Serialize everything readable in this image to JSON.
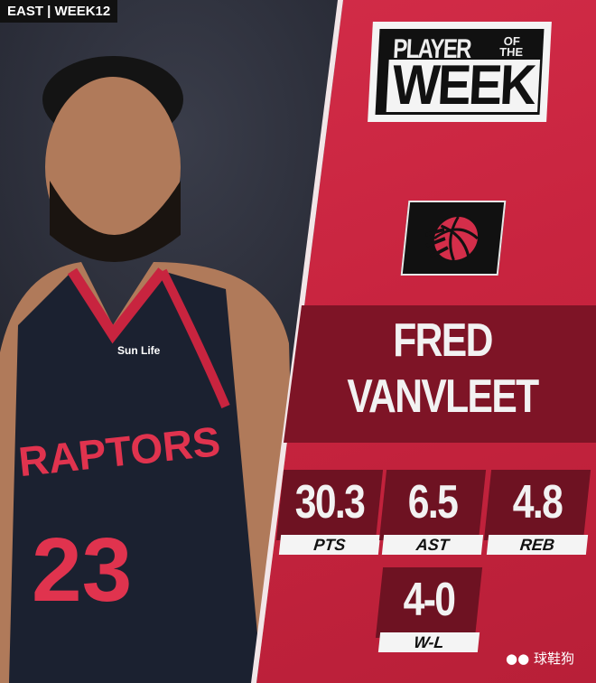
{
  "tag": "EAST | WEEK12",
  "title": {
    "line1": "PLAYER",
    "small_top": "OF",
    "small_bottom": "THE",
    "line2": "WEEK"
  },
  "team_logo": "raptors-basketball-claw-logo",
  "player": {
    "first": "FRED",
    "last": "VANVLEET"
  },
  "stats": [
    {
      "value": "30.3",
      "label": "PTS"
    },
    {
      "value": "6.5",
      "label": "AST"
    },
    {
      "value": "4.8",
      "label": "REB"
    }
  ],
  "record": {
    "value": "4-0",
    "label": "W-L"
  },
  "jersey": {
    "team": "RAPTORS",
    "number": "23",
    "sponsor": "Sun Life"
  },
  "watermark": "球鞋狗",
  "colors": {
    "red": "#c8243f",
    "dark_red": "#7e1426",
    "black": "#111111",
    "white": "#f4f4f4"
  }
}
